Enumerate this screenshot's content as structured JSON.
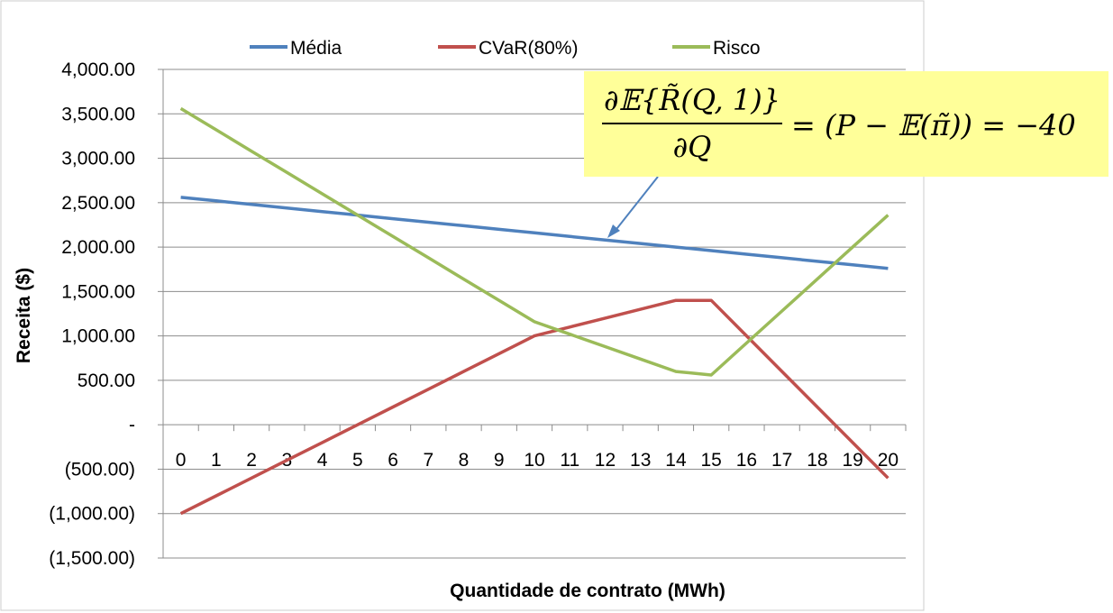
{
  "chart_data": {
    "type": "line",
    "x": [
      0,
      1,
      2,
      3,
      4,
      5,
      6,
      7,
      8,
      9,
      10,
      11,
      12,
      13,
      14,
      15,
      16,
      17,
      18,
      19,
      20
    ],
    "xlabel": "Quantidade de contrato (MWh)",
    "ylabel": "Receita ($)",
    "ylim": [
      -1500,
      4000
    ],
    "yticks": [
      -1500,
      -1000,
      -500,
      0,
      500,
      1000,
      1500,
      2000,
      2500,
      3000,
      3500,
      4000
    ],
    "ytick_labels": [
      "(1,500.00)",
      "(1,000.00)",
      "(500.00)",
      "-",
      "500.00",
      "1,000.00",
      "1,500.00",
      "2,000.00",
      "2,500.00",
      "3,000.00",
      "3,500.00",
      "4,000.00"
    ],
    "grid": true,
    "legend_position": "top",
    "series": [
      {
        "name": "Média",
        "color": "#4f81bd",
        "values": [
          2560,
          2520,
          2480,
          2440,
          2400,
          2360,
          2320,
          2280,
          2240,
          2200,
          2160,
          2120,
          2080,
          2040,
          2000,
          1960,
          1920,
          1880,
          1840,
          1800,
          1760
        ]
      },
      {
        "name": "CVaR(80%)",
        "color": "#c0504d",
        "values": [
          -1000,
          -800,
          -600,
          -400,
          -200,
          0,
          200,
          400,
          600,
          800,
          1000,
          1100,
          1200,
          1300,
          1400,
          1400,
          1000,
          600,
          200,
          -200,
          -600
        ]
      },
      {
        "name": "Risco",
        "color": "#9bbb59",
        "values": [
          3560,
          3320,
          3080,
          2840,
          2600,
          2360,
          2120,
          1880,
          1640,
          1400,
          1160,
          1020,
          880,
          740,
          600,
          560,
          920,
          1280,
          1640,
          2000,
          2360
        ]
      }
    ]
  },
  "formula": {
    "numerator": "∂𝔼{R̃(Q, 1)}",
    "denominator": "∂Q",
    "rhs": "= (P − 𝔼(π̃)) = −40"
  }
}
